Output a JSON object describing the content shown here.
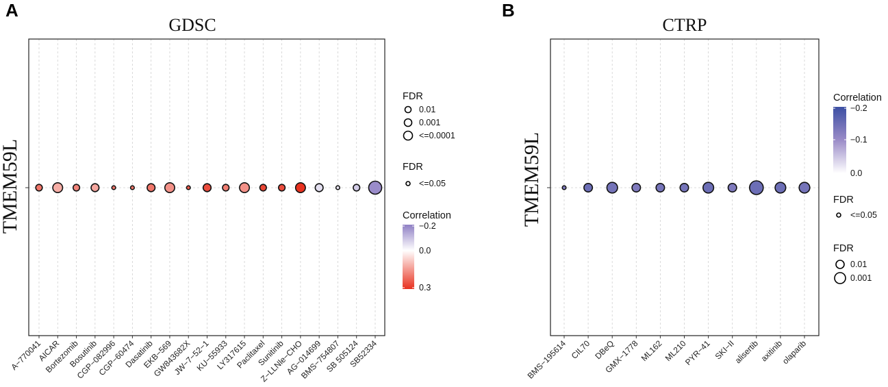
{
  "chart_data": [
    {
      "panel": "A",
      "type": "scatter",
      "title": "GDSC",
      "ylabel": "TMEM59L",
      "row": "TMEM59L",
      "categories": [
        "A−770041",
        "AICAR",
        "Bortezomib",
        "Bosutinib",
        "CGP−082996",
        "CGP−60474",
        "Dasatinib",
        "EKB−569",
        "GW843682X",
        "JW−7−52−1",
        "KU−55933",
        "LY317615",
        "Paclitaxel",
        "Sunitinib",
        "Z−LLNle−CHO",
        "AG−014699",
        "BMS−754807",
        "SB 505124",
        "SB52334"
      ],
      "correlation": [
        0.2,
        0.12,
        0.18,
        0.13,
        0.2,
        0.2,
        0.2,
        0.16,
        0.24,
        0.26,
        0.19,
        0.16,
        0.27,
        0.26,
        0.3,
        -0.05,
        -0.04,
        -0.08,
        -0.18
      ],
      "fdr_level": [
        "0.01",
        "<=0.0001",
        "0.01",
        "0.001",
        "<=0.05",
        "<=0.05",
        "0.001",
        "<=0.0001",
        "<=0.05",
        "0.001",
        "0.01",
        "<=0.0001",
        "0.01",
        "0.01",
        "<=0.0001",
        "0.001",
        "<=0.05",
        "0.01",
        "max"
      ],
      "legends": {
        "fdr_size": {
          "title": "FDR",
          "labels": [
            "0.01",
            "0.001",
            "<=0.0001"
          ]
        },
        "fdr_small": {
          "title": "FDR",
          "labels": [
            "<=0.05"
          ]
        },
        "color": {
          "title": "Correlation",
          "ticks": [
            "−0.2",
            "0.0",
            "0.3"
          ],
          "range": [
            -0.2,
            0.3
          ]
        }
      }
    },
    {
      "panel": "B",
      "type": "scatter",
      "title": "CTRP",
      "ylabel": "TMEM59L",
      "row": "TMEM59L",
      "categories": [
        "BMS−195614",
        "CIL70",
        "DBeQ",
        "GMX−1778",
        "ML162",
        "ML210",
        "PYR−41",
        "SKI−II",
        "alisertib",
        "axitinib",
        "olaparib"
      ],
      "correlation": [
        -0.13,
        -0.15,
        -0.14,
        -0.13,
        -0.14,
        -0.14,
        -0.15,
        -0.13,
        -0.15,
        -0.15,
        -0.14
      ],
      "fdr_level": [
        "<=0.05",
        "0.01",
        "0.001",
        "0.01",
        "0.01",
        "0.01",
        "0.001",
        "0.01",
        "max",
        "0.001",
        "0.001"
      ],
      "legends": {
        "color": {
          "title": "Correlation",
          "ticks": [
            "−0.2",
            "−0.1",
            "0.0"
          ],
          "range": [
            -0.2,
            0.0
          ]
        },
        "fdr_small": {
          "title": "FDR",
          "labels": [
            "<=0.05"
          ]
        },
        "fdr_size": {
          "title": "FDR",
          "labels": [
            "0.01",
            "0.001"
          ]
        }
      }
    }
  ],
  "colors": {
    "low_neg": "#3c4fa3",
    "mid_purple": "#9b8cc8",
    "white": "#ffffff",
    "high_pos": "#e8311f",
    "grid": "#d0d0d0",
    "frame": "#222222"
  }
}
